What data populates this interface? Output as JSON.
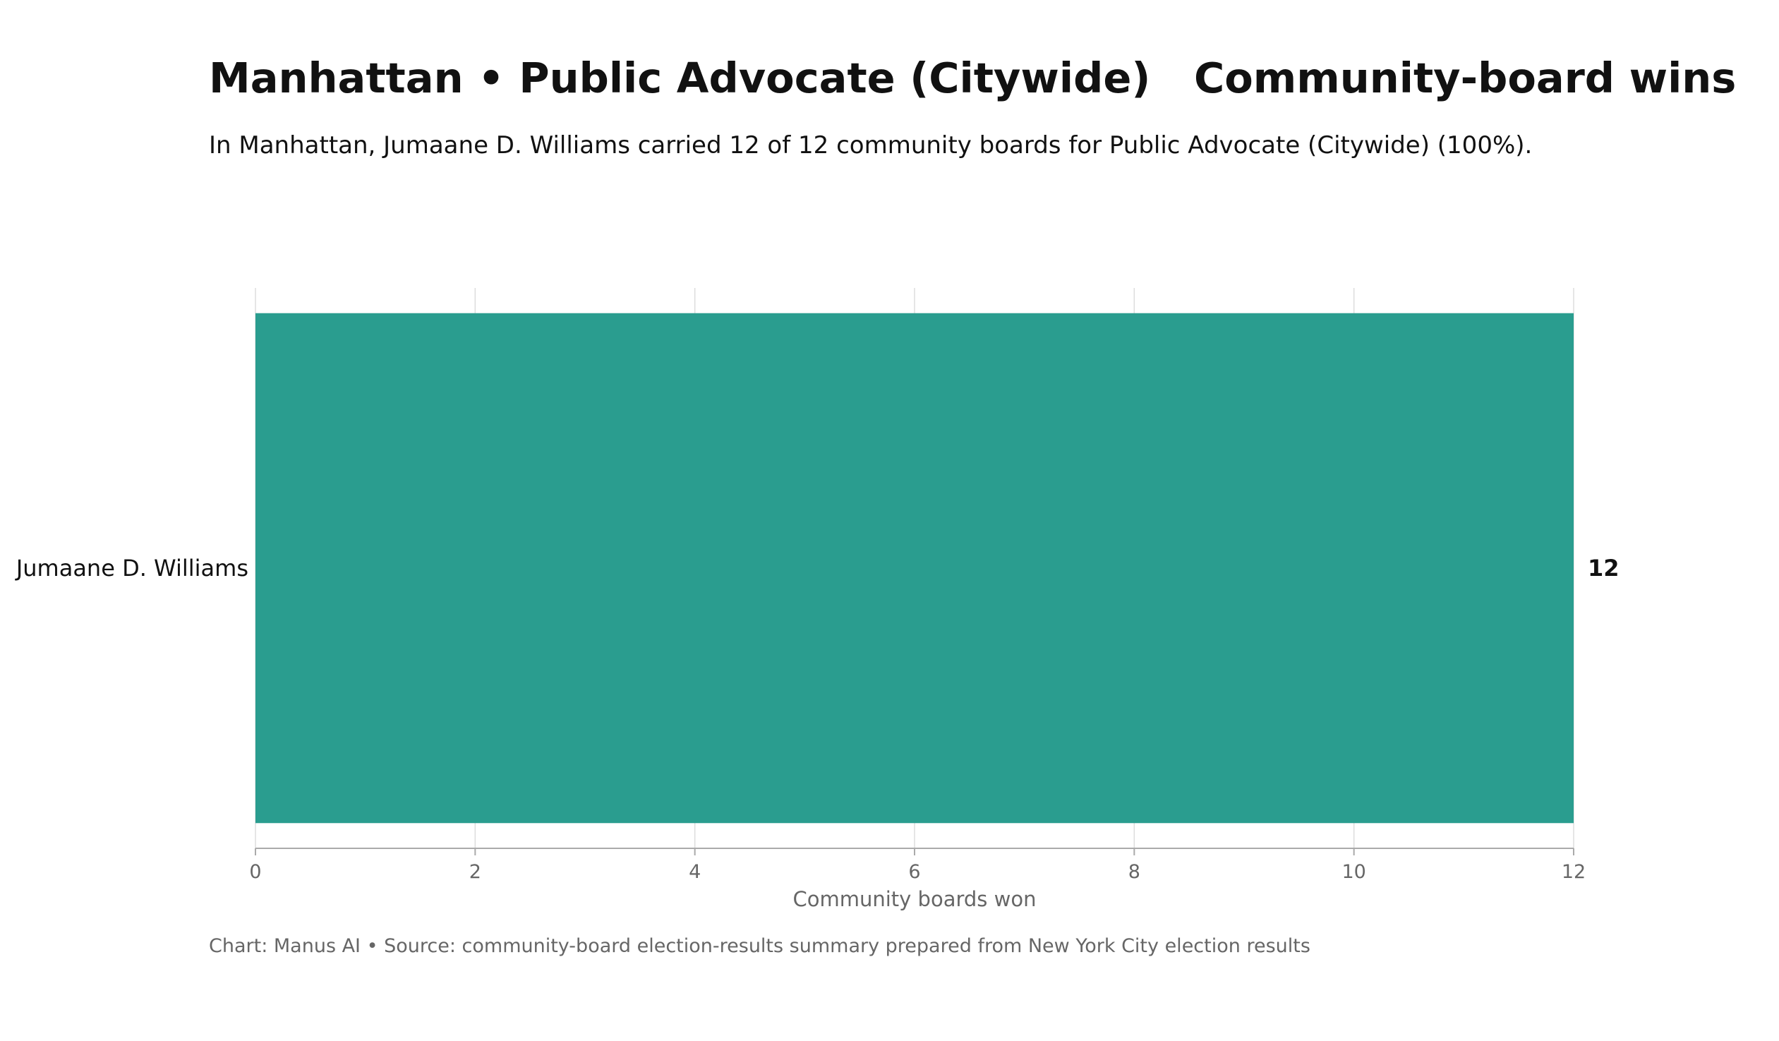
{
  "chart_data": {
    "type": "bar",
    "orientation": "horizontal",
    "title": "Manhattan • Public Advocate (Citywide)   Community-board wins",
    "subtitle": "In Manhattan, Jumaane D. Williams carried 12 of 12 community boards for Public Advocate (Citywide) (100%).",
    "categories": [
      "Jumaane D. Williams"
    ],
    "values": [
      12
    ],
    "value_labels": [
      "12"
    ],
    "xlabel": "Community boards won",
    "ylabel": "",
    "xlim": [
      0,
      12
    ],
    "xticks": [
      0,
      2,
      4,
      6,
      8,
      10,
      12
    ],
    "xtick_labels": [
      "0",
      "2",
      "4",
      "6",
      "8",
      "10",
      "12"
    ],
    "grid": "vertical",
    "legend": "none",
    "bar_color": "#2a9d8f",
    "gridline_color": "#dddddd",
    "axis_color": "#aaaaaa",
    "footer": "Chart: Manus AI • Source: community-board election-results summary prepared from New York City election results"
  }
}
